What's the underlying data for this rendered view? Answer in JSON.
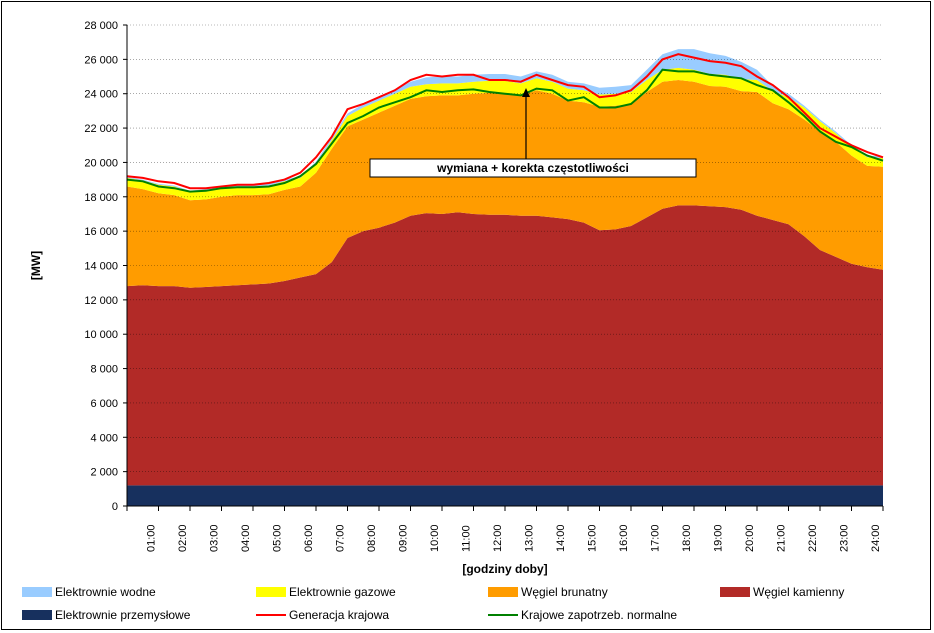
{
  "chart_data": {
    "type": "area",
    "title": "",
    "ylabel": "[MW]",
    "xlabel": "[godziny doby]",
    "ylim": [
      0,
      28000
    ],
    "yticks": [
      0,
      2000,
      4000,
      6000,
      8000,
      10000,
      12000,
      14000,
      16000,
      18000,
      20000,
      22000,
      24000,
      26000,
      28000
    ],
    "ytick_labels": [
      "0",
      "2 000",
      "4 000",
      "6 000",
      "8 000",
      "10 000",
      "12 000",
      "14 000",
      "16 000",
      "18 000",
      "20 000",
      "22 000",
      "24 000",
      "26 000",
      "28 000"
    ],
    "xlim": [
      0,
      24
    ],
    "xtick_labels": [
      "01:00",
      "02:00",
      "03:00",
      "04:00",
      "05:00",
      "06:00",
      "07:00",
      "08:00",
      "09:00",
      "10:00",
      "11:00",
      "12:00",
      "13:00",
      "14:00",
      "15:00",
      "16:00",
      "17:00",
      "18:00",
      "19:00",
      "20:00",
      "21:00",
      "22:00",
      "23:00",
      "24:00"
    ],
    "grid": "horizontal",
    "legend_position": "bottom",
    "x": [
      0,
      0.5,
      1,
      1.5,
      2,
      2.5,
      3,
      3.5,
      4,
      4.5,
      5,
      5.5,
      6,
      6.5,
      7,
      7.5,
      8,
      8.5,
      9,
      9.5,
      10,
      10.5,
      11,
      11.5,
      12,
      12.5,
      13,
      13.5,
      14,
      14.5,
      15,
      15.5,
      16,
      16.5,
      17,
      17.5,
      18,
      18.5,
      19,
      19.5,
      20,
      20.5,
      21,
      21.5,
      22,
      22.5,
      23,
      23.5,
      24
    ],
    "series": [
      {
        "name": "Elektrownie przemysłowe",
        "kind": "area",
        "color": "#17305E",
        "values": [
          1200,
          1200,
          1200,
          1200,
          1200,
          1200,
          1200,
          1200,
          1200,
          1200,
          1200,
          1200,
          1200,
          1200,
          1200,
          1200,
          1200,
          1200,
          1200,
          1200,
          1200,
          1200,
          1200,
          1200,
          1200,
          1200,
          1200,
          1200,
          1200,
          1200,
          1200,
          1200,
          1200,
          1200,
          1200,
          1200,
          1200,
          1200,
          1200,
          1200,
          1200,
          1200,
          1200,
          1200,
          1200,
          1200,
          1200,
          1200,
          1200
        ]
      },
      {
        "name": "Węgiel kamienny",
        "kind": "area",
        "color": "#B22A27",
        "values": [
          11600,
          11650,
          11600,
          11600,
          11500,
          11550,
          11600,
          11650,
          11700,
          11750,
          11900,
          12100,
          12300,
          13000,
          14400,
          14800,
          15000,
          15300,
          15700,
          15850,
          15800,
          15900,
          15800,
          15750,
          15750,
          15700,
          15700,
          15600,
          15500,
          15300,
          14850,
          14900,
          15100,
          15600,
          16100,
          16300,
          16300,
          16250,
          16200,
          16050,
          15700,
          15450,
          15200,
          14500,
          13700,
          13300,
          12900,
          12700,
          12550
        ]
      },
      {
        "name": "Węgiel brunatny",
        "kind": "area",
        "color": "#FF9C00",
        "values": [
          5800,
          5600,
          5400,
          5300,
          5100,
          5100,
          5200,
          5250,
          5200,
          5200,
          5300,
          5300,
          5900,
          6600,
          6500,
          6500,
          6700,
          6800,
          6800,
          6800,
          6900,
          6800,
          7000,
          7100,
          7100,
          7000,
          7300,
          7200,
          6900,
          7000,
          7200,
          7200,
          7100,
          7300,
          7400,
          7300,
          7200,
          7000,
          7000,
          6900,
          7200,
          6800,
          6700,
          6800,
          6900,
          6700,
          6300,
          5900,
          6000
        ]
      },
      {
        "name": "Elektrownie gazowe",
        "kind": "area",
        "color": "#FFFF00",
        "values": [
          500,
          500,
          500,
          500,
          500,
          500,
          500,
          500,
          500,
          500,
          500,
          500,
          500,
          500,
          600,
          700,
          700,
          700,
          700,
          700,
          700,
          700,
          700,
          700,
          700,
          700,
          700,
          700,
          700,
          700,
          700,
          700,
          700,
          700,
          700,
          700,
          700,
          700,
          700,
          700,
          700,
          700,
          700,
          700,
          600,
          500,
          500,
          500,
          500
        ]
      },
      {
        "name": "Elektrownie wodne",
        "kind": "area",
        "color": "#99CCFF",
        "values": [
          50,
          50,
          50,
          50,
          50,
          100,
          100,
          100,
          100,
          100,
          100,
          100,
          150,
          150,
          150,
          200,
          200,
          200,
          300,
          400,
          400,
          400,
          400,
          400,
          400,
          400,
          400,
          400,
          400,
          400,
          400,
          400,
          400,
          600,
          900,
          1100,
          1200,
          1200,
          1100,
          1000,
          600,
          300,
          200,
          100,
          100,
          100,
          100,
          100,
          100
        ]
      },
      {
        "name": "Generacja krajowa",
        "kind": "line",
        "color": "#FF0000",
        "values": [
          19200,
          19100,
          18900,
          18800,
          18500,
          18500,
          18600,
          18700,
          18700,
          18800,
          19000,
          19400,
          20300,
          21500,
          23100,
          23400,
          23800,
          24200,
          24800,
          25100,
          25000,
          25100,
          25100,
          24800,
          24800,
          24700,
          25100,
          24800,
          24500,
          24400,
          23800,
          23900,
          24200,
          25000,
          26000,
          26300,
          26100,
          25900,
          25800,
          25600,
          25000,
          24500,
          23800,
          22900,
          22000,
          21500,
          21000,
          20600,
          20300
        ]
      },
      {
        "name": "Krajowe zapotrzeb. normalne",
        "kind": "line",
        "color": "#008000",
        "values": [
          19000,
          18900,
          18600,
          18500,
          18300,
          18350,
          18500,
          18550,
          18550,
          18600,
          18800,
          19200,
          19900,
          21100,
          22300,
          22700,
          23200,
          23500,
          23800,
          24200,
          24100,
          24200,
          24250,
          24100,
          24000,
          23900,
          24300,
          24200,
          23600,
          23800,
          23200,
          23200,
          23400,
          24200,
          25400,
          25300,
          25300,
          25100,
          25000,
          24900,
          24500,
          24200,
          23500,
          22700,
          21800,
          21200,
          20900,
          20400,
          20100
        ]
      }
    ],
    "annotation": "wymiana + korekta częstotliwości"
  },
  "legend": [
    "Elektrownie wodne",
    "Elektrownie gazowe",
    "Węgiel brunatny",
    "Węgiel kamienny",
    "Elektrownie przemysłowe",
    "Generacja krajowa",
    "Krajowe zapotrzeb. normalne"
  ]
}
